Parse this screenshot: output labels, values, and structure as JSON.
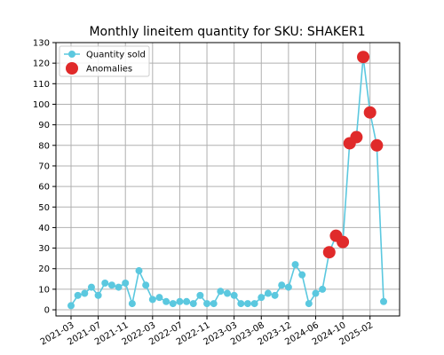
{
  "chart_data": {
    "type": "line",
    "title": "Monthly lineitem quantity for SKU: SHAKER1",
    "xlabel": "",
    "ylabel": "",
    "ylim": [
      -3,
      130
    ],
    "yticks": [
      0,
      10,
      20,
      30,
      40,
      50,
      60,
      70,
      80,
      90,
      100,
      110,
      120,
      130
    ],
    "xticks": [
      "2021-03",
      "2021-07",
      "2021-11",
      "2022-03",
      "2022-07",
      "2022-11",
      "2023-03",
      "2023-08",
      "2023-12",
      "2024-06",
      "2024-10",
      "2025-02"
    ],
    "grid": true,
    "legend_position": "top-left",
    "series": [
      {
        "name": "Quantity sold",
        "style": "line-with-markers",
        "color": "#5bc8df",
        "values": [
          2,
          7,
          8,
          11,
          7,
          13,
          12,
          11,
          13,
          3,
          19,
          12,
          5,
          6,
          4,
          3,
          4,
          4,
          3,
          7,
          3,
          3,
          9,
          8,
          7,
          3,
          3,
          3,
          6,
          8,
          7,
          12,
          11,
          22,
          17,
          3,
          8,
          10,
          28,
          36,
          33,
          81,
          84,
          123,
          96,
          80,
          4
        ]
      },
      {
        "name": "Anomalies",
        "style": "points",
        "color": "#e02a2a",
        "points": [
          {
            "index": 38,
            "value": 28
          },
          {
            "index": 39,
            "value": 36
          },
          {
            "index": 40,
            "value": 33
          },
          {
            "index": 41,
            "value": 81
          },
          {
            "index": 42,
            "value": 84
          },
          {
            "index": 43,
            "value": 123
          },
          {
            "index": 44,
            "value": 96
          },
          {
            "index": 45,
            "value": 80
          }
        ]
      }
    ]
  }
}
